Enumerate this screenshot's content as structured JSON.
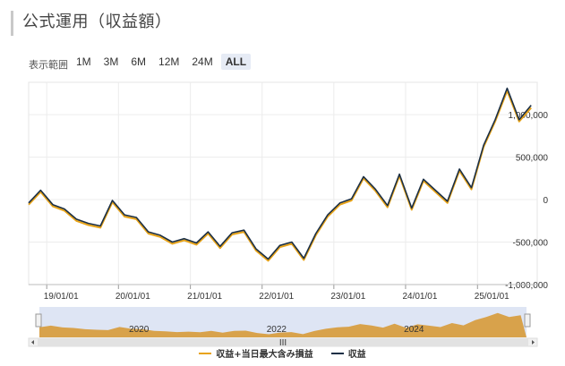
{
  "page": {
    "title": "公式運用（収益額）"
  },
  "range_selector": {
    "label": "表示範囲",
    "buttons": [
      "1M",
      "3M",
      "6M",
      "12M",
      "24M",
      "ALL"
    ],
    "selected": "ALL"
  },
  "colors": {
    "income_with_loss": "#e8a317",
    "income": "#1b2f45",
    "navigator_fill": "#d79a38",
    "navigator_mask": "#c8d3ec"
  },
  "chart_data": {
    "type": "line",
    "xlabel": "",
    "ylabel": "",
    "x_ticks": [
      "19/01/01",
      "20/01/01",
      "21/01/01",
      "22/01/01",
      "23/01/01",
      "24/01/01",
      "25/01/01"
    ],
    "y_ticks": [
      "1,000,000",
      "500,000",
      "0",
      "-500,000",
      "-1,000,000"
    ],
    "ylim": [
      -1000000,
      1380000
    ],
    "x_range": [
      "2018-10-01",
      "2025-11-01"
    ],
    "grid": true,
    "legend_position": "bottom",
    "series": [
      {
        "name": "収益+当日最大含み損益",
        "x": [
          "2018-10-01",
          "2018-12-01",
          "2019-02-01",
          "2019-04-01",
          "2019-06-01",
          "2019-08-01",
          "2019-10-01",
          "2019-12-01",
          "2020-02-01",
          "2020-04-01",
          "2020-06-01",
          "2020-08-01",
          "2020-10-01",
          "2020-12-01",
          "2021-02-01",
          "2021-04-01",
          "2021-06-01",
          "2021-08-01",
          "2021-10-01",
          "2021-12-01",
          "2022-02-01",
          "2022-04-01",
          "2022-06-01",
          "2022-08-01",
          "2022-10-01",
          "2022-12-01",
          "2023-02-01",
          "2023-04-01",
          "2023-06-01",
          "2023-08-01",
          "2023-10-01",
          "2023-12-01",
          "2024-02-01",
          "2024-04-01",
          "2024-06-01",
          "2024-08-01",
          "2024-10-01",
          "2024-12-01",
          "2025-02-01",
          "2025-04-01",
          "2025-06-01",
          "2025-08-01",
          "2025-10-01"
        ],
        "y": [
          -60000,
          90000,
          -80000,
          -130000,
          -250000,
          -300000,
          -330000,
          -30000,
          -200000,
          -230000,
          -400000,
          -440000,
          -520000,
          -480000,
          -530000,
          -400000,
          -570000,
          -410000,
          -380000,
          -600000,
          -720000,
          -560000,
          -520000,
          -710000,
          -420000,
          -200000,
          -60000,
          -10000,
          250000,
          100000,
          -90000,
          280000,
          -120000,
          220000,
          90000,
          -40000,
          340000,
          120000,
          620000,
          920000,
          1280000,
          920000,
          1080000
        ]
      },
      {
        "name": "収益",
        "x": [
          "2018-10-01",
          "2018-12-01",
          "2019-02-01",
          "2019-04-01",
          "2019-06-01",
          "2019-08-01",
          "2019-10-01",
          "2019-12-01",
          "2020-02-01",
          "2020-04-01",
          "2020-06-01",
          "2020-08-01",
          "2020-10-01",
          "2020-12-01",
          "2021-02-01",
          "2021-04-01",
          "2021-06-01",
          "2021-08-01",
          "2021-10-01",
          "2021-12-01",
          "2022-02-01",
          "2022-04-01",
          "2022-06-01",
          "2022-08-01",
          "2022-10-01",
          "2022-12-01",
          "2023-02-01",
          "2023-04-01",
          "2023-06-01",
          "2023-08-01",
          "2023-10-01",
          "2023-12-01",
          "2024-02-01",
          "2024-04-01",
          "2024-06-01",
          "2024-08-01",
          "2024-10-01",
          "2024-12-01",
          "2025-02-01",
          "2025-04-01",
          "2025-06-01",
          "2025-08-01",
          "2025-10-01"
        ],
        "y": [
          -40000,
          110000,
          -60000,
          -110000,
          -230000,
          -280000,
          -310000,
          -10000,
          -180000,
          -210000,
          -380000,
          -420000,
          -500000,
          -460000,
          -510000,
          -380000,
          -550000,
          -390000,
          -360000,
          -580000,
          -700000,
          -540000,
          -500000,
          -690000,
          -400000,
          -180000,
          -40000,
          10000,
          270000,
          120000,
          -70000,
          300000,
          -100000,
          240000,
          110000,
          -20000,
          360000,
          140000,
          640000,
          940000,
          1310000,
          940000,
          1110000
        ]
      }
    ],
    "navigator": {
      "x_ticks": [
        "2020",
        "2022",
        "2024"
      ],
      "scroll_label": "III"
    }
  }
}
